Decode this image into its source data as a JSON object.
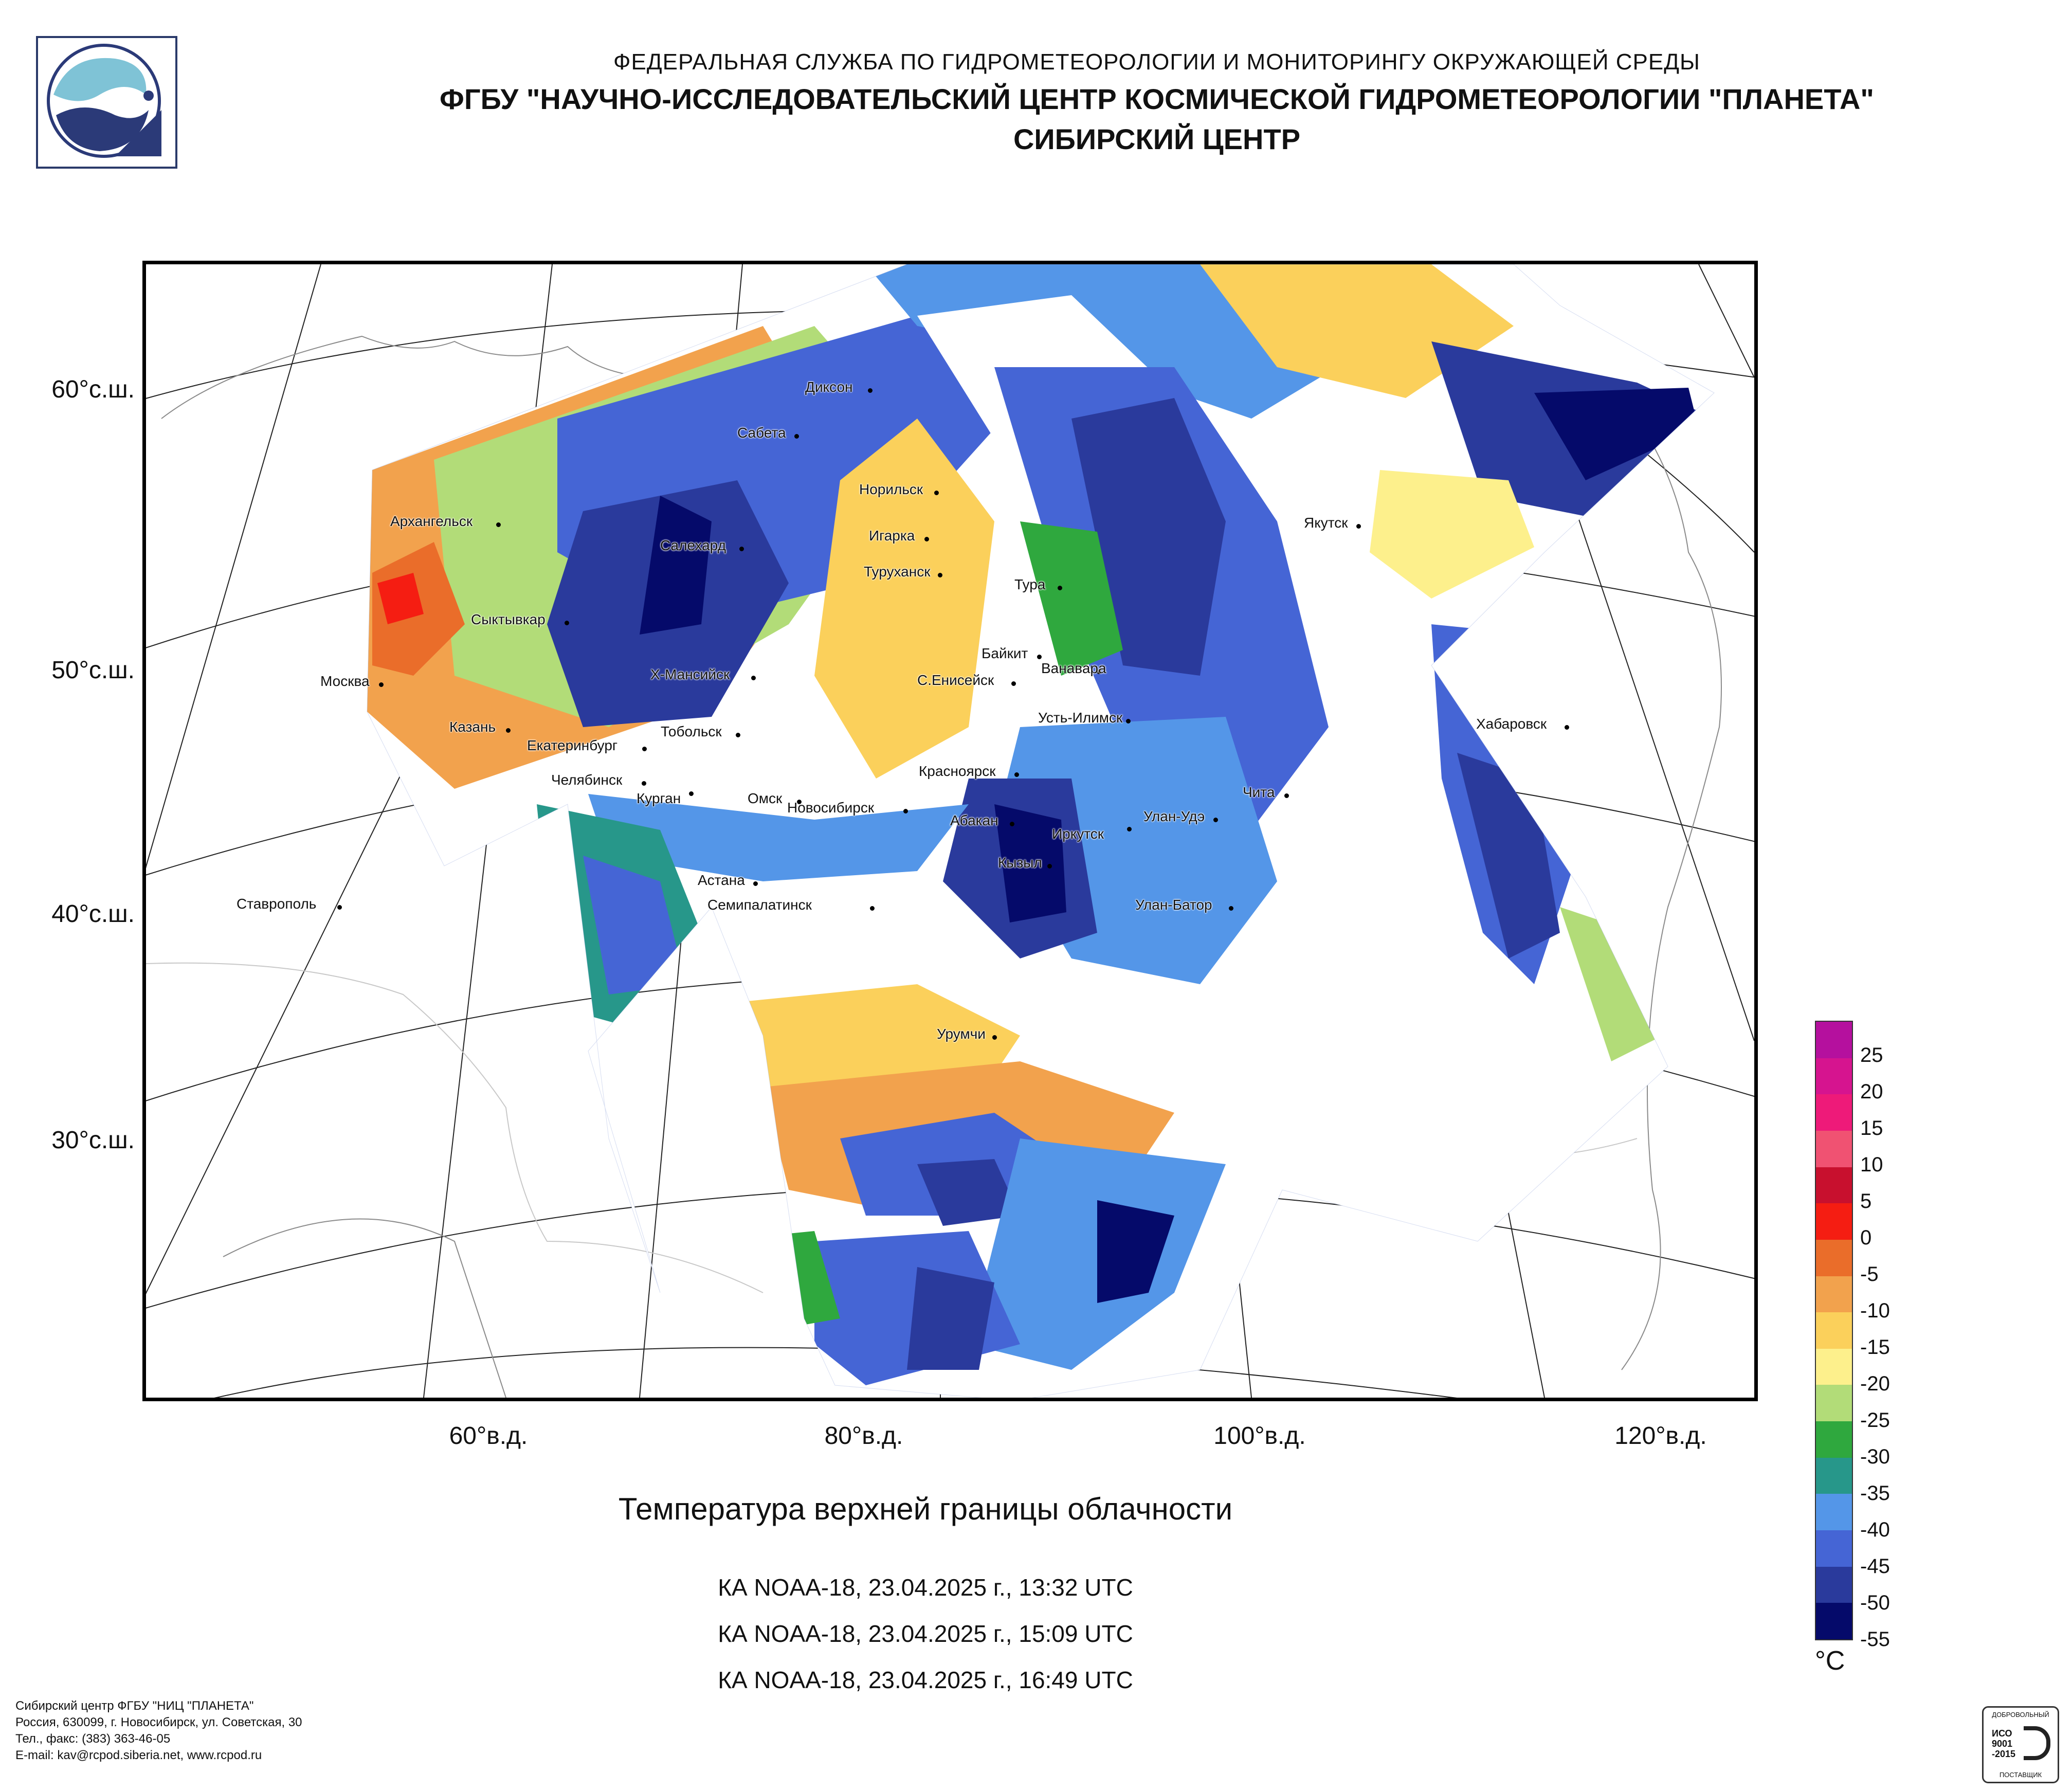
{
  "header": {
    "line1": "ФЕДЕРАЛЬНАЯ СЛУЖБА ПО ГИДРОМЕТЕОРОЛОГИИ И МОНИТОРИНГУ ОКРУЖАЮЩЕЙ СРЕДЫ",
    "line2": "ФГБУ \"НАУЧНО-ИССЛЕДОВАТЕЛЬСКИЙ ЦЕНТР КОСМИЧЕСКОЙ ГИДРОМЕТЕОРОЛОГИИ \"ПЛАНЕТА\"",
    "line3": "СИБИРСКИЙ ЦЕНТР"
  },
  "logo": {
    "icon": "planeta-logo-icon",
    "colors": [
      "#7fc3d6",
      "#2b3a78"
    ]
  },
  "map": {
    "lat_labels": [
      "60°с.ш.",
      "50°с.ш.",
      "40°с.ш.",
      "30°с.ш."
    ],
    "lon_labels": [
      "60°в.д.",
      "80°в.д.",
      "100°в.д.",
      "120°в.д."
    ],
    "cities": [
      {
        "name": "Диксон"
      },
      {
        "name": "Сабета"
      },
      {
        "name": "Норильск"
      },
      {
        "name": "Архангельск"
      },
      {
        "name": "Салехард"
      },
      {
        "name": "Игарка"
      },
      {
        "name": "Туруханск"
      },
      {
        "name": "Тура"
      },
      {
        "name": "Якутск"
      },
      {
        "name": "Сыктывкар"
      },
      {
        "name": "Байкит"
      },
      {
        "name": "Ванавара"
      },
      {
        "name": "Москва"
      },
      {
        "name": "Х-Мансийск"
      },
      {
        "name": "С.Енисейск"
      },
      {
        "name": "Усть-Илимск"
      },
      {
        "name": "Хабаровск"
      },
      {
        "name": "Казань"
      },
      {
        "name": "Тобольск"
      },
      {
        "name": "Екатеринбург"
      },
      {
        "name": "Красноярск"
      },
      {
        "name": "Челябинск"
      },
      {
        "name": "Чита"
      },
      {
        "name": "Курган"
      },
      {
        "name": "Омск"
      },
      {
        "name": "Новосибирск"
      },
      {
        "name": "Абакан"
      },
      {
        "name": "Улан-Удэ"
      },
      {
        "name": "Иркутск"
      },
      {
        "name": "Кызыл"
      },
      {
        "name": "Астана"
      },
      {
        "name": "Ставрополь"
      },
      {
        "name": "Семипалатинск"
      },
      {
        "name": "Улан-Батор"
      },
      {
        "name": "Урумчи"
      }
    ]
  },
  "title": "Температура верхней границы облачности",
  "passes": [
    "КА NOAA-18, 23.04.2025 г., 13:32 UTC",
    "КА NOAA-18, 23.04.2025 г., 15:09 UTC",
    "КА NOAA-18, 23.04.2025 г., 16:49 UTC"
  ],
  "legend": {
    "unit": "°C",
    "colors": [
      "#b5109e",
      "#d6148f",
      "#ee1a79",
      "#f05272",
      "#c8102e",
      "#f51d12",
      "#ea6d2a",
      "#f2a24d",
      "#fbd05b",
      "#fdf08c",
      "#b2dc78",
      "#2fa83e",
      "#27978a",
      "#5496e8",
      "#4565d5",
      "#2a3a9c",
      "#050a6a"
    ],
    "labels": [
      "25",
      "20",
      "15",
      "10",
      "5",
      "0",
      "-5",
      "-10",
      "-15",
      "-20",
      "-25",
      "-30",
      "-35",
      "-40",
      "-45",
      "-50",
      "-55"
    ]
  },
  "footer": [
    "Сибирский центр ФГБУ \"НИЦ \"ПЛАНЕТА\"",
    "Россия, 630099, г. Новосибирск, ул. Советская, 30",
    "Тел., факс: (383) 363-46-05",
    "E-mail: kav@rcpod.siberia.net, www.rcpod.ru"
  ],
  "iso_stamp": {
    "top": "ДОБРОВОЛЬНЫЙ",
    "line1": "ИСО",
    "line2": "9001",
    "line3": "-2015",
    "bottom": "ПОСТАВЩИК"
  }
}
